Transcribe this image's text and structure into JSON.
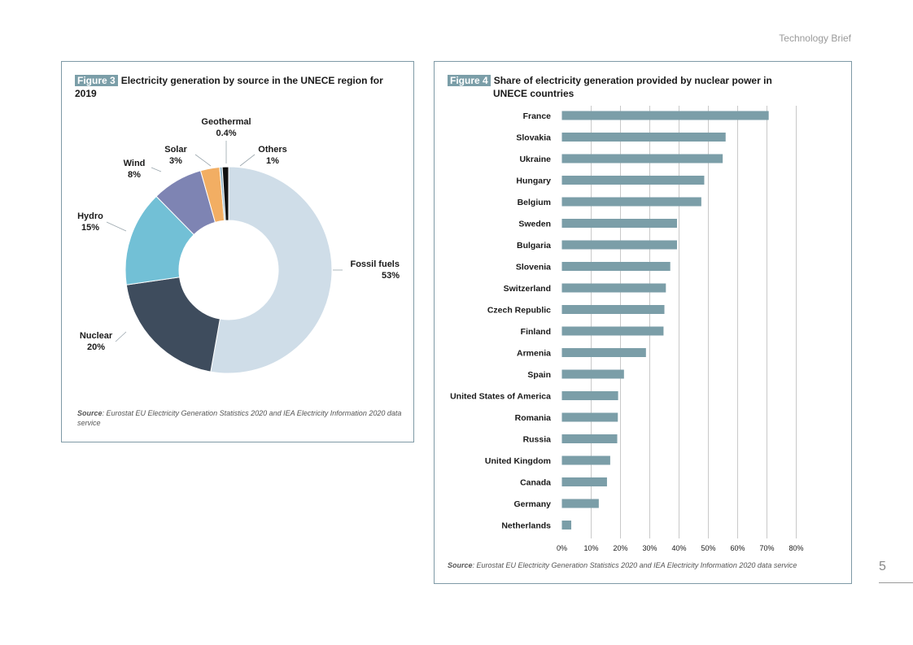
{
  "header": {
    "brief": "Technology Brief"
  },
  "page": {
    "number": "5"
  },
  "figure3": {
    "tag": "Figure 3",
    "title": "Electricity generation by source in the UNECE region for 2019",
    "source_label": "Source",
    "source_text": ": Eurostat EU Electricity Generation Statistics 2020 and IEA Electricity Information 2020 data service"
  },
  "figure4": {
    "tag": "Figure 4",
    "title_line1": "Share of electricity generation provided by nuclear power in",
    "title_line2": "UNECE countries",
    "source_label": "Source",
    "source_text": ": Eurostat EU Electricity Generation Statistics 2020 and IEA Electricity Information 2020 data service"
  },
  "chart_data": [
    {
      "type": "pie",
      "title": "Electricity generation by source in the UNECE region for 2019",
      "donut": true,
      "slices": [
        {
          "label": "Fossil fuels",
          "value": 53,
          "display": "53%",
          "color": "#cfdde8"
        },
        {
          "label": "Nuclear",
          "value": 20,
          "display": "20%",
          "color": "#3e4c5d"
        },
        {
          "label": "Hydro",
          "value": 15,
          "display": "15%",
          "color": "#72c0d6"
        },
        {
          "label": "Wind",
          "value": 8,
          "display": "8%",
          "color": "#7e84b3"
        },
        {
          "label": "Solar",
          "value": 3,
          "display": "3%",
          "color": "#f2ae63"
        },
        {
          "label": "Geothermal",
          "value": 0.4,
          "display": "0.4%",
          "color": "#8fb3c6"
        },
        {
          "label": "Others",
          "value": 1,
          "display": "1%",
          "color": "#111111"
        }
      ]
    },
    {
      "type": "bar",
      "orientation": "horizontal",
      "title": "Share of electricity generation provided by nuclear power in UNECE countries",
      "color": "#7b9ea8",
      "categories": [
        "France",
        "Slovakia",
        "Ukraine",
        "Hungary",
        "Belgium",
        "Sweden",
        "Bulgaria",
        "Slovenia",
        "Switzerland",
        "Czech Republic",
        "Finland",
        "Armenia",
        "Spain",
        "United States of America",
        "Romania",
        "Russia",
        "United Kingdom",
        "Canada",
        "Germany",
        "Netherlands"
      ],
      "values": [
        70.6,
        55.9,
        54.9,
        48.6,
        47.6,
        39.3,
        39.3,
        37.0,
        35.5,
        35.0,
        34.7,
        28.7,
        21.2,
        19.2,
        19.1,
        18.9,
        16.5,
        15.4,
        12.6,
        3.2
      ],
      "xlim": [
        0,
        80
      ],
      "xticks": [
        0,
        10,
        20,
        30,
        40,
        50,
        60,
        70,
        80
      ],
      "xtick_labels": [
        "0%",
        "10%",
        "20%",
        "30%",
        "40%",
        "50%",
        "60%",
        "70%",
        "80%"
      ],
      "grid": true
    }
  ]
}
